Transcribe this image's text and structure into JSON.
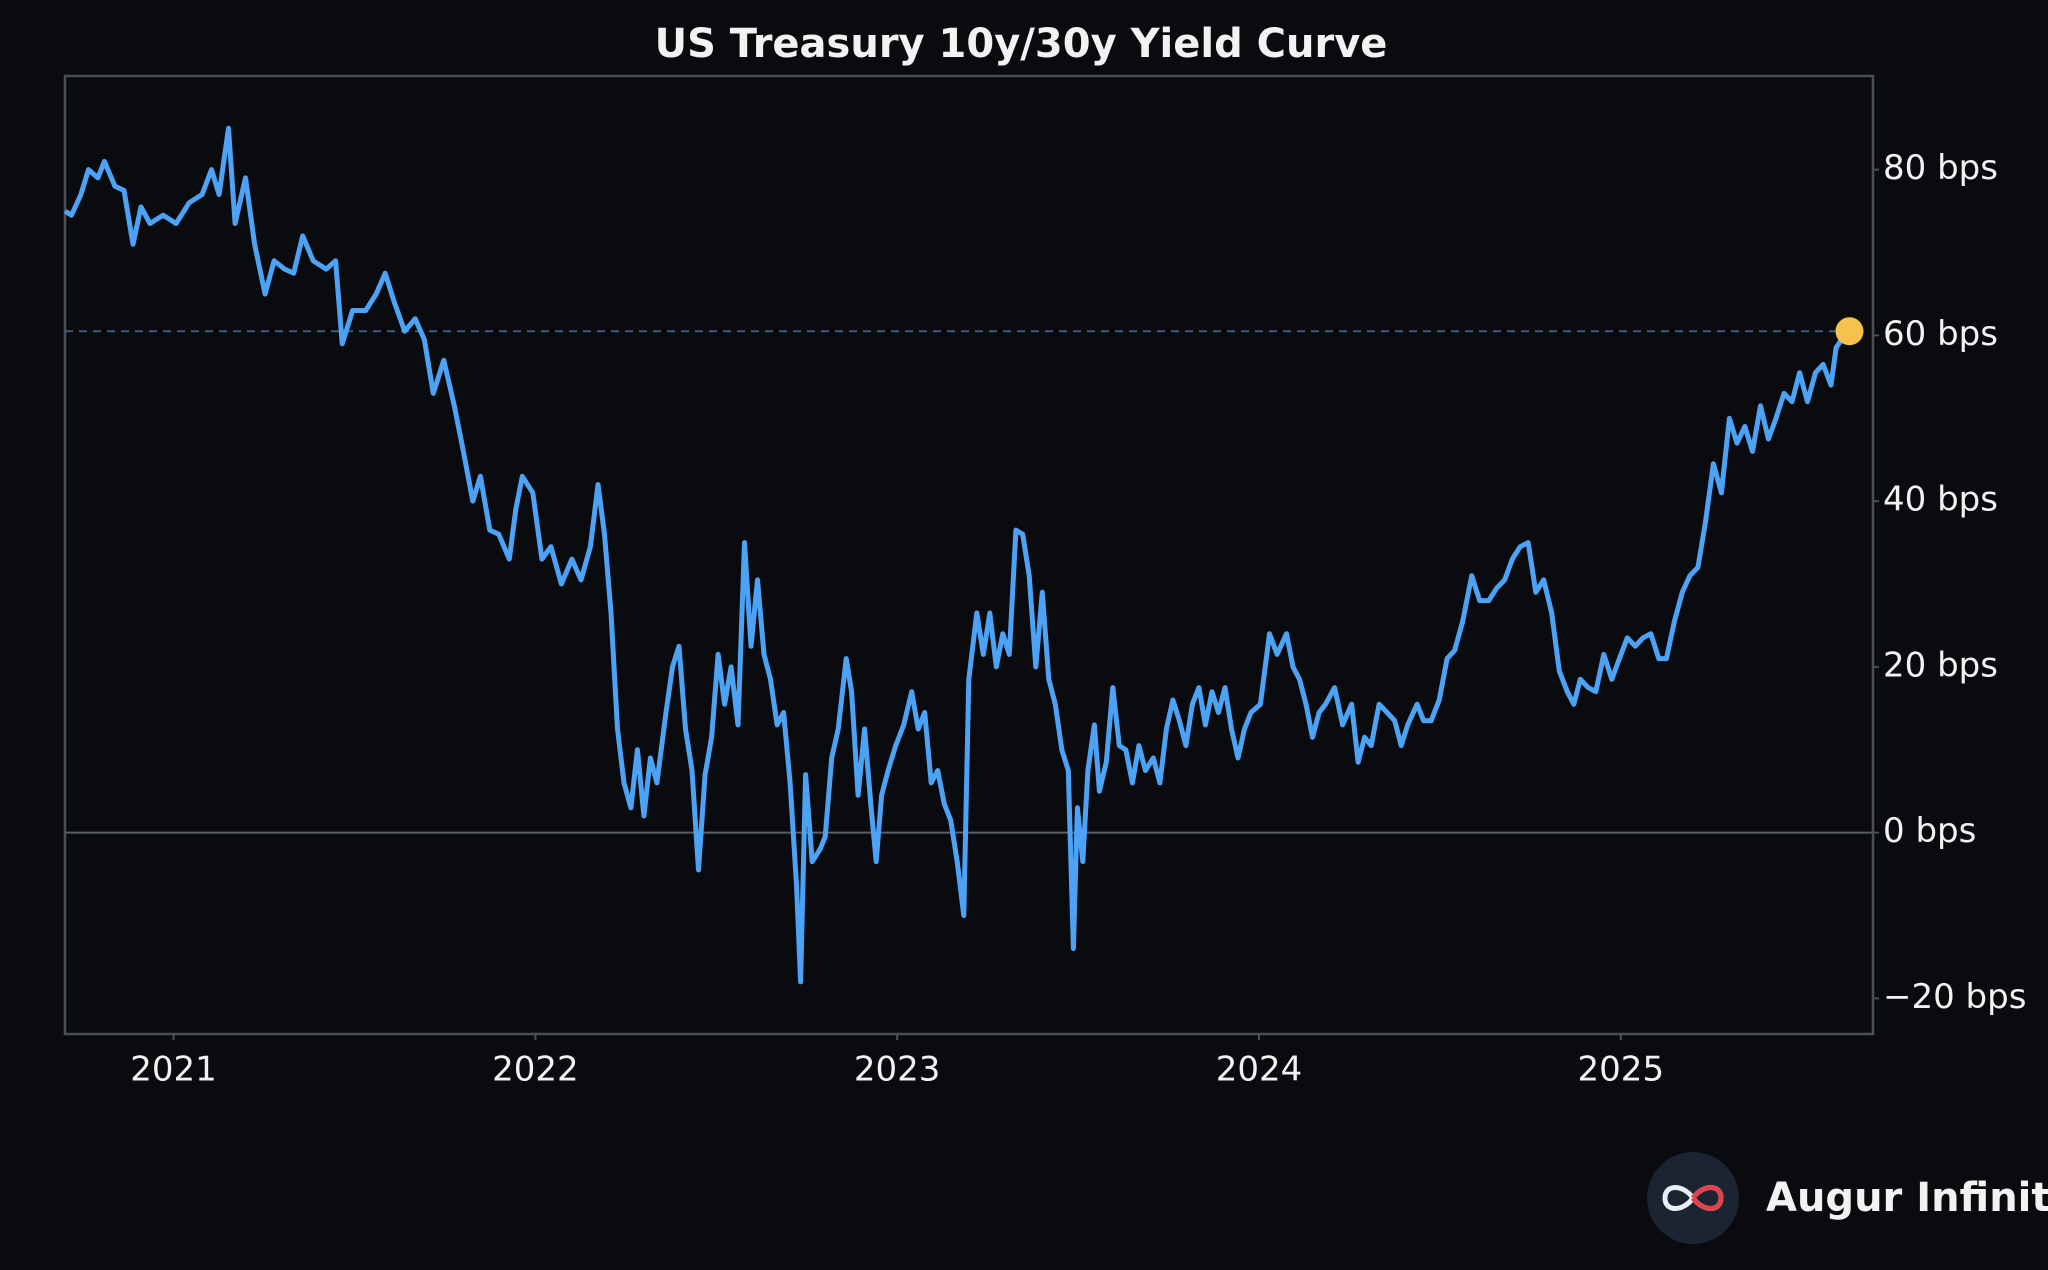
{
  "chart_data": {
    "type": "line",
    "title": "US Treasury 10y/30y Yield Curve",
    "watermark": "Augur Infinity",
    "color": "#4ca3f5",
    "marker_color": "#f5c24c",
    "highlight_last": true,
    "zero_line": true,
    "xlim": [
      2020.7,
      2025.697
    ],
    "xticks": [
      2021,
      2022,
      2023,
      2024,
      2025
    ],
    "ylim": [
      -24.3,
      91.3
    ],
    "yticks": [
      {
        "value": -20,
        "label": "−20 bps"
      },
      {
        "value": 0,
        "label": "0 bps"
      },
      {
        "value": 20,
        "label": "20 bps"
      },
      {
        "value": 40,
        "label": "40 bps"
      },
      {
        "value": 60,
        "label": "60 bps"
      },
      {
        "value": 80,
        "label": "80 bps"
      }
    ],
    "x": [
      2020.7,
      2020.718,
      2020.744,
      2020.765,
      2020.791,
      2020.809,
      2020.838,
      2020.863,
      2020.888,
      2020.91,
      2020.935,
      2020.971,
      2021.007,
      2021.043,
      2021.079,
      2021.105,
      2021.126,
      2021.152,
      2021.17,
      2021.199,
      2021.224,
      2021.253,
      2021.278,
      2021.307,
      2021.332,
      2021.357,
      2021.386,
      2021.422,
      2021.448,
      2021.466,
      2021.495,
      2021.531,
      2021.56,
      2021.585,
      2021.61,
      2021.639,
      2021.668,
      2021.693,
      2021.718,
      2021.747,
      2021.776,
      2021.801,
      2021.827,
      2021.848,
      2021.874,
      2021.899,
      2021.928,
      2021.946,
      2021.964,
      2021.993,
      2022.018,
      2022.043,
      2022.072,
      2022.101,
      2022.126,
      2022.152,
      2022.173,
      2022.191,
      2022.209,
      2022.227,
      2022.245,
      2022.264,
      2022.282,
      2022.3,
      2022.318,
      2022.336,
      2022.361,
      2022.379,
      2022.397,
      2022.415,
      2022.433,
      2022.451,
      2022.469,
      2022.487,
      2022.505,
      2022.523,
      2022.541,
      2022.56,
      2022.578,
      2022.596,
      2022.614,
      2022.632,
      2022.65,
      2022.668,
      2022.686,
      2022.704,
      2022.722,
      2022.733,
      2022.747,
      2022.765,
      2022.787,
      2022.801,
      2022.819,
      2022.837,
      2022.859,
      2022.874,
      2022.892,
      2022.91,
      2022.928,
      2022.942,
      2022.957,
      2022.975,
      2022.996,
      2023.018,
      2023.04,
      2023.058,
      2023.076,
      2023.094,
      2023.112,
      2023.13,
      2023.148,
      2023.166,
      2023.184,
      2023.198,
      2023.22,
      2023.238,
      2023.256,
      2023.274,
      2023.292,
      2023.31,
      2023.328,
      2023.347,
      2023.365,
      2023.383,
      2023.401,
      2023.419,
      2023.437,
      2023.455,
      2023.473,
      2023.487,
      2023.498,
      2023.513,
      2023.527,
      2023.545,
      2023.559,
      2023.578,
      2023.596,
      2023.614,
      2023.632,
      2023.65,
      2023.668,
      2023.686,
      2023.708,
      2023.726,
      2023.744,
      2023.762,
      2023.78,
      2023.798,
      2023.816,
      2023.834,
      2023.852,
      2023.87,
      2023.888,
      2023.906,
      2023.924,
      2023.942,
      2023.96,
      2023.978,
      2024.004,
      2024.029,
      2024.05,
      2024.076,
      2024.094,
      2024.112,
      2024.13,
      2024.148,
      2024.166,
      2024.184,
      2024.209,
      2024.231,
      2024.256,
      2024.274,
      2024.292,
      2024.31,
      2024.332,
      2024.354,
      2024.375,
      2024.393,
      2024.411,
      2024.437,
      2024.455,
      2024.476,
      2024.498,
      2024.52,
      2024.541,
      2024.563,
      2024.588,
      2024.61,
      2024.635,
      2024.657,
      2024.679,
      2024.7,
      2024.722,
      2024.744,
      2024.765,
      2024.787,
      2024.809,
      2024.83,
      2024.852,
      2024.87,
      2024.888,
      2024.91,
      2024.931,
      2024.953,
      2024.975,
      2024.996,
      2025.018,
      2025.04,
      2025.061,
      2025.083,
      2025.105,
      2025.126,
      2025.148,
      2025.17,
      2025.191,
      2025.213,
      2025.234,
      2025.256,
      2025.278,
      2025.3,
      2025.321,
      2025.343,
      2025.364,
      2025.386,
      2025.408,
      2025.429,
      2025.451,
      2025.473,
      2025.494,
      2025.516,
      2025.538,
      2025.559,
      2025.581,
      2025.595,
      2025.61,
      2025.632
    ],
    "values": [
      75,
      74.5,
      77,
      80,
      79,
      81,
      78,
      77.5,
      71,
      75.5,
      73.5,
      74.5,
      73.5,
      76,
      77,
      80,
      77,
      85,
      73.5,
      79,
      71,
      65,
      69,
      68,
      67.5,
      72,
      69,
      68,
      69,
      59,
      63,
      63,
      65,
      67.5,
      64,
      60.5,
      62,
      59.5,
      53,
      57,
      51.5,
      46,
      40,
      43,
      36.5,
      36,
      33,
      39,
      43,
      41,
      33,
      34.5,
      30,
      33,
      30.5,
      34.5,
      42,
      36,
      26.5,
      12.5,
      6,
      3,
      10,
      2,
      9,
      6,
      14.5,
      20,
      22.5,
      12.5,
      7.5,
      -4.5,
      7,
      11.5,
      21.5,
      15.5,
      20,
      13,
      35,
      22.5,
      30.5,
      21.5,
      18.5,
      13,
      14.5,
      6,
      -6.5,
      -18,
      7,
      -3.5,
      -2,
      -0.5,
      9,
      12.5,
      21,
      17,
      4.5,
      12.5,
      3,
      -3.5,
      4.5,
      7.5,
      10.5,
      13,
      17,
      12.5,
      14.5,
      6,
      7.5,
      3.5,
      1.5,
      -3.5,
      -10,
      18.5,
      26.5,
      21.5,
      26.5,
      20,
      24,
      21.5,
      36.5,
      36,
      31,
      20,
      29,
      18.5,
      15.5,
      10,
      7.5,
      -14,
      3,
      -3.5,
      7.5,
      13,
      5,
      8.5,
      17.5,
      10.5,
      10,
      6,
      10.5,
      7.5,
      9,
      6,
      12.5,
      16,
      13.5,
      10.5,
      15.5,
      17.5,
      13,
      17,
      14.5,
      17.5,
      12.5,
      9,
      12.5,
      14.5,
      15.5,
      24,
      21.5,
      24,
      20,
      18.5,
      15.5,
      11.5,
      14.5,
      15.5,
      17.5,
      13,
      15.5,
      8.5,
      11.5,
      10.5,
      15.5,
      14.5,
      13.5,
      10.5,
      13,
      15.5,
      13.5,
      13.5,
      16,
      21,
      22,
      25.5,
      31,
      28,
      28,
      29.5,
      30.5,
      33,
      34.5,
      35,
      29,
      30.5,
      26.5,
      19.5,
      17,
      15.5,
      18.5,
      17.5,
      17,
      21.5,
      18.5,
      21,
      23.5,
      22.5,
      23.5,
      24,
      21,
      21,
      25.5,
      29,
      31,
      32,
      37.5,
      44.5,
      41,
      50,
      47,
      49,
      46,
      51.5,
      47.5,
      50,
      53,
      52,
      55.5,
      52,
      55.5,
      56.5,
      54,
      58.5,
      59.5,
      60.5
    ]
  }
}
